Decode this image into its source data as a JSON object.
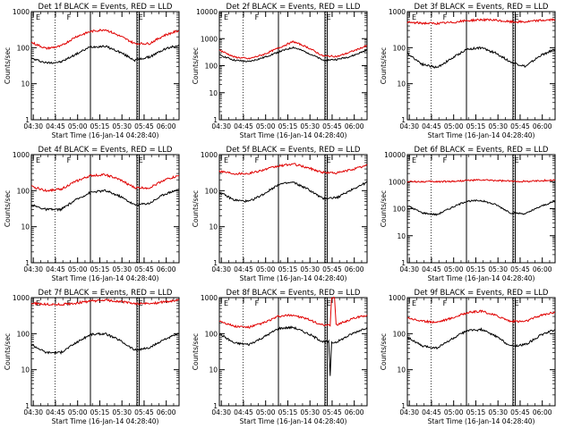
{
  "figure": {
    "xlabel": "Start Time (16-Jan-14 04:28:40)",
    "ylabel": "Counts/sec",
    "xticks": [
      "04:30",
      "04:45",
      "05:00",
      "05:15",
      "05:30",
      "05:45",
      "06:00"
    ],
    "yticks": [
      "1",
      "10",
      "100",
      "1000"
    ],
    "panel_yticks_extra": "10000",
    "colors": {
      "events": "#000000",
      "lld": "#e00000",
      "axes": "#000000",
      "background": "#ffffff"
    }
  },
  "chart_data": [
    {
      "type": "line",
      "title": "Det 1f BLACK = Events, RED = LLD",
      "ylog": true,
      "ylim": [
        1,
        1000
      ],
      "x_unit": "minutes after 04:28:40",
      "xlim": [
        0,
        100
      ],
      "markers": {
        "dotted": [
          16,
          72
        ],
        "solid": [
          40,
          71.5
        ],
        "labels": [
          "E",
          "F",
          "E"
        ]
      },
      "series": [
        {
          "name": "Events",
          "color": "#000000",
          "x": [
            0,
            10,
            20,
            30,
            40,
            50,
            60,
            70,
            80,
            90,
            100
          ],
          "y": [
            50,
            38,
            40,
            65,
            105,
            110,
            75,
            45,
            55,
            90,
            120
          ]
        },
        {
          "name": "LLD",
          "color": "#e00000",
          "x": [
            0,
            10,
            20,
            30,
            40,
            50,
            60,
            70,
            80,
            90,
            100
          ],
          "y": [
            140,
            95,
            110,
            200,
            280,
            320,
            210,
            130,
            130,
            220,
            300
          ]
        }
      ]
    },
    {
      "type": "line",
      "title": "Det 2f BLACK = Events, RED = LLD",
      "ylog": true,
      "ylim": [
        1,
        10000
      ],
      "x_unit": "minutes after 04:28:40",
      "xlim": [
        0,
        100
      ],
      "markers": {
        "dotted": [
          16,
          72
        ],
        "solid": [
          40,
          71.5
        ],
        "labels": [
          "E",
          "F",
          "E"
        ]
      },
      "series": [
        {
          "name": "Events",
          "color": "#000000",
          "x": [
            0,
            10,
            20,
            30,
            40,
            50,
            60,
            70,
            80,
            90,
            100
          ],
          "y": [
            250,
            160,
            140,
            200,
            320,
            480,
            300,
            160,
            170,
            230,
            380
          ]
        },
        {
          "name": "LLD",
          "color": "#e00000",
          "x": [
            0,
            10,
            20,
            30,
            40,
            50,
            60,
            70,
            80,
            90,
            100
          ],
          "y": [
            380,
            210,
            180,
            260,
            450,
            780,
            470,
            230,
            220,
            340,
            550
          ]
        }
      ]
    },
    {
      "type": "line",
      "title": "Det 3f BLACK = Events, RED = LLD",
      "ylog": true,
      "ylim": [
        1,
        1000
      ],
      "x_unit": "minutes after 04:28:40",
      "xlim": [
        0,
        100
      ],
      "markers": {
        "dotted": [
          16,
          72
        ],
        "solid": [
          40,
          71.5
        ],
        "labels": [
          "E",
          "F",
          "E"
        ]
      },
      "series": [
        {
          "name": "Events",
          "color": "#000000",
          "x": [
            0,
            10,
            20,
            30,
            40,
            50,
            60,
            70,
            80,
            90,
            100
          ],
          "y": [
            70,
            35,
            28,
            50,
            90,
            100,
            70,
            40,
            30,
            60,
            90
          ]
        },
        {
          "name": "LLD",
          "color": "#e00000",
          "x": [
            0,
            10,
            20,
            30,
            40,
            50,
            60,
            70,
            80,
            90,
            100
          ],
          "y": [
            500,
            480,
            470,
            500,
            560,
            600,
            570,
            520,
            520,
            570,
            600
          ]
        }
      ]
    },
    {
      "type": "line",
      "title": "Det 4f BLACK = Events, RED = LLD",
      "ylog": true,
      "ylim": [
        1,
        1000
      ],
      "x_unit": "minutes after 04:28:40",
      "xlim": [
        0,
        100
      ],
      "markers": {
        "dotted": [
          16,
          72
        ],
        "solid": [
          40,
          71.5
        ],
        "labels": [
          "E",
          "F",
          "E"
        ]
      },
      "series": [
        {
          "name": "Events",
          "color": "#000000",
          "x": [
            0,
            10,
            20,
            30,
            40,
            50,
            60,
            70,
            80,
            90,
            100
          ],
          "y": [
            40,
            30,
            30,
            55,
            90,
            100,
            70,
            40,
            45,
            80,
            110
          ]
        },
        {
          "name": "LLD",
          "color": "#e00000",
          "x": [
            0,
            10,
            20,
            30,
            40,
            50,
            60,
            70,
            80,
            90,
            100
          ],
          "y": [
            130,
            100,
            110,
            180,
            260,
            280,
            200,
            120,
            120,
            200,
            260
          ]
        }
      ]
    },
    {
      "type": "line",
      "title": "Det 5f BLACK = Events, RED = LLD",
      "ylog": true,
      "ylim": [
        1,
        1000
      ],
      "x_unit": "minutes after 04:28:40",
      "xlim": [
        0,
        100
      ],
      "markers": {
        "dotted": [
          16,
          72
        ],
        "solid": [
          40,
          71.5
        ],
        "labels": [
          "E",
          "F",
          "E"
        ]
      },
      "series": [
        {
          "name": "Events",
          "color": "#000000",
          "x": [
            0,
            10,
            20,
            30,
            40,
            50,
            60,
            70,
            80,
            90,
            100
          ],
          "y": [
            90,
            55,
            50,
            80,
            150,
            170,
            110,
            60,
            65,
            110,
            170
          ]
        },
        {
          "name": "LLD",
          "color": "#e00000",
          "x": [
            0,
            10,
            20,
            30,
            40,
            50,
            60,
            70,
            80,
            90,
            100
          ],
          "y": [
            350,
            300,
            300,
            380,
            480,
            550,
            430,
            320,
            310,
            390,
            500
          ]
        }
      ]
    },
    {
      "type": "line",
      "title": "Det 6f BLACK = Events, RED = LLD",
      "ylog": true,
      "ylim": [
        1,
        10000
      ],
      "x_unit": "minutes after 04:28:40",
      "xlim": [
        0,
        100
      ],
      "markers": {
        "dotted": [
          16,
          72
        ],
        "solid": [
          40,
          71.5
        ],
        "labels": [
          "E",
          "F",
          "E"
        ]
      },
      "series": [
        {
          "name": "Events",
          "color": "#000000",
          "x": [
            0,
            10,
            20,
            30,
            40,
            50,
            60,
            70,
            80,
            90,
            100
          ],
          "y": [
            130,
            70,
            60,
            110,
            190,
            200,
            140,
            70,
            65,
            120,
            190
          ]
        },
        {
          "name": "LLD",
          "color": "#e00000",
          "x": [
            0,
            10,
            20,
            30,
            40,
            50,
            60,
            70,
            80,
            90,
            100
          ],
          "y": [
            1000,
            1000,
            1000,
            1020,
            1100,
            1150,
            1100,
            1030,
            1020,
            1080,
            1150
          ]
        }
      ]
    },
    {
      "type": "line",
      "title": "Det 7f BLACK = Events, RED = LLD",
      "ylog": true,
      "ylim": [
        1,
        1000
      ],
      "x_unit": "minutes after 04:28:40",
      "xlim": [
        0,
        100
      ],
      "markers": {
        "dotted": [
          16,
          72
        ],
        "solid": [
          40,
          71.5
        ],
        "labels": [
          "E",
          "F",
          "E"
        ]
      },
      "series": [
        {
          "name": "Events",
          "color": "#000000",
          "x": [
            0,
            10,
            20,
            30,
            40,
            50,
            60,
            70,
            80,
            90,
            100
          ],
          "y": [
            50,
            30,
            30,
            55,
            95,
            100,
            65,
            35,
            40,
            70,
            100
          ]
        },
        {
          "name": "LLD",
          "color": "#e00000",
          "x": [
            0,
            10,
            20,
            30,
            40,
            50,
            60,
            70,
            80,
            90,
            100
          ],
          "y": [
            700,
            650,
            640,
            700,
            800,
            850,
            780,
            680,
            680,
            760,
            850
          ]
        }
      ]
    },
    {
      "type": "line",
      "title": "Det 8f BLACK = Events, RED = LLD",
      "ylog": true,
      "ylim": [
        1,
        1000
      ],
      "x_unit": "minutes after 04:28:40",
      "xlim": [
        0,
        100
      ],
      "markers": {
        "dotted": [
          16,
          72
        ],
        "solid": [
          40,
          71.5
        ],
        "labels": [
          "E",
          "F",
          "E"
        ]
      },
      "series": [
        {
          "name": "Events",
          "color": "#000000",
          "x": [
            0,
            10,
            20,
            30,
            40,
            50,
            60,
            70,
            74,
            75,
            76,
            80,
            90,
            100
          ],
          "y": [
            100,
            55,
            50,
            80,
            140,
            150,
            100,
            60,
            60,
            7,
            55,
            60,
            100,
            150
          ]
        },
        {
          "name": "LLD",
          "color": "#e00000",
          "x": [
            0,
            10,
            20,
            30,
            40,
            50,
            60,
            70,
            75,
            76,
            78,
            79,
            80,
            90,
            100
          ],
          "y": [
            230,
            160,
            150,
            200,
            300,
            330,
            250,
            170,
            170,
            1000,
            1000,
            180,
            180,
            260,
            330
          ]
        }
      ]
    },
    {
      "type": "line",
      "title": "Det 9f BLACK = Events, RED = LLD",
      "ylog": true,
      "ylim": [
        1,
        1000
      ],
      "x_unit": "minutes after 04:28:40",
      "xlim": [
        0,
        100
      ],
      "markers": {
        "dotted": [
          16,
          72
        ],
        "solid": [
          40,
          71.5
        ],
        "labels": [
          "E",
          "F",
          "E"
        ]
      },
      "series": [
        {
          "name": "Events",
          "color": "#000000",
          "x": [
            0,
            10,
            20,
            30,
            40,
            50,
            60,
            70,
            80,
            90,
            100
          ],
          "y": [
            80,
            45,
            40,
            70,
            120,
            130,
            85,
            45,
            50,
            90,
            130
          ]
        },
        {
          "name": "LLD",
          "color": "#e00000",
          "x": [
            0,
            10,
            20,
            30,
            40,
            50,
            60,
            70,
            80,
            90,
            100
          ],
          "y": [
            280,
            220,
            210,
            270,
            380,
            420,
            320,
            220,
            220,
            320,
            400
          ]
        }
      ]
    }
  ]
}
